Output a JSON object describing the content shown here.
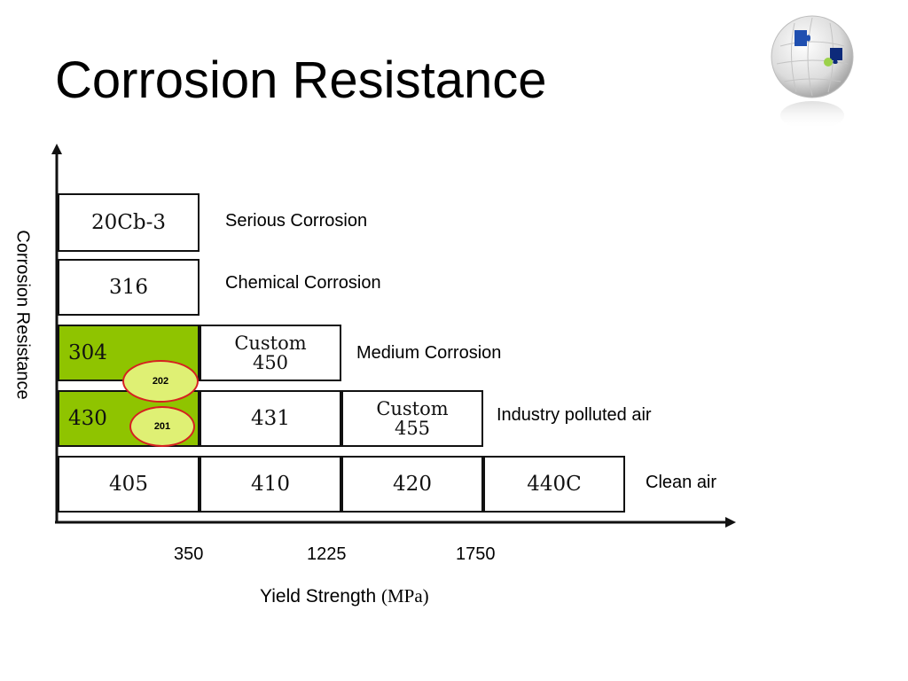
{
  "slide": {
    "title": "Corrosion Resistance"
  },
  "diagram": {
    "y_axis_label": "Corrosion Resistance",
    "x_axis_label": "Yield Strength",
    "x_axis_unit": "(MPa)",
    "x_ticks": [
      "350",
      "1225",
      "1750"
    ],
    "categories": {
      "serious": "Serious Corrosion",
      "chemical": "Chemical Corrosion",
      "medium": "Medium Corrosion",
      "industry": "Industry polluted air",
      "clean": "Clean air"
    },
    "grades": {
      "g20cb3": "20Cb-3",
      "g316": "316",
      "g304": "304",
      "custom450_line1": "Custom",
      "custom450_line2": "450",
      "g430": "430",
      "g431": "431",
      "custom455_line1": "Custom",
      "custom455_line2": "455",
      "g405": "405",
      "g410": "410",
      "g420": "420",
      "g440c": "440C"
    },
    "markers": {
      "m202": "202",
      "m201": "201"
    },
    "colors": {
      "highlight_green": "#8fc400",
      "marker_fill": "#dff074",
      "marker_border": "#d62020",
      "axis": "#111111"
    }
  }
}
